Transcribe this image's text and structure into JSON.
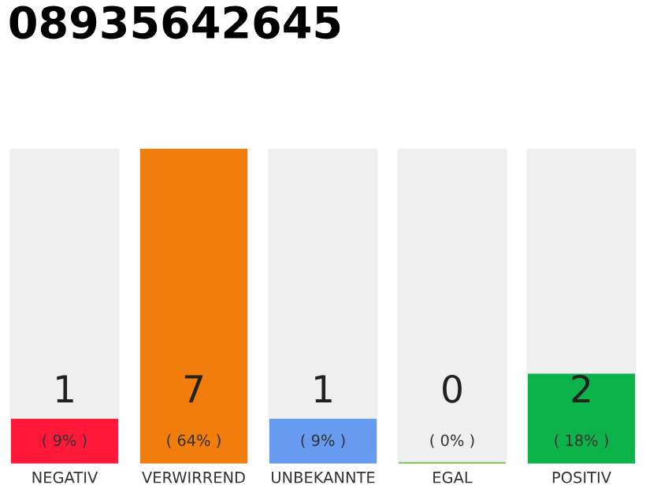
{
  "chart_data": {
    "type": "bar",
    "title": "08935642645",
    "categories": [
      "NEGATIV",
      "VERWIRREND",
      "UNBEKANNTE",
      "EGAL",
      "POSITIV"
    ],
    "values": [
      1,
      7,
      1,
      0,
      2
    ],
    "colors": [
      "#ff1837",
      "#f07d0c",
      "#679bef",
      "#88c057",
      "#0db34a"
    ],
    "value_labels": [
      "1\n( 9% )",
      "7\n( 64% )",
      "1\n( 9% )",
      "0\n( 0% )",
      "2\n( 18% )"
    ],
    "ylim": [
      0,
      7
    ],
    "tick_labels": "x",
    "grid": false,
    "legend": false
  }
}
